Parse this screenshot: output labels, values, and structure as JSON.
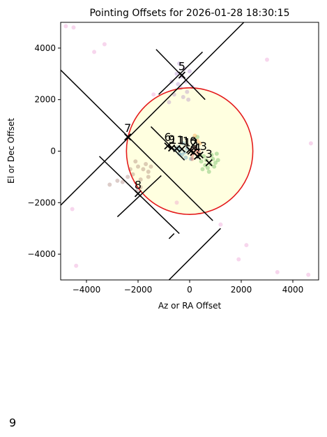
{
  "chart_data": {
    "type": "scatter",
    "title": "Pointing Offsets for 2026-01-28 18:30:15",
    "xlabel": "Az or RA Offset",
    "ylabel": "El or Dec Offset",
    "xlim": [
      -5000,
      5000
    ],
    "ylim": [
      -5000,
      5000
    ],
    "xticks": [
      -4000,
      -2000,
      0,
      2000,
      4000
    ],
    "yticks": [
      -4000,
      -2000,
      0,
      2000,
      4000
    ],
    "xtick_labels": [
      "−4000",
      "−2000",
      "0",
      "2000",
      "4000"
    ],
    "ytick_labels": [
      "−4000",
      "−2000",
      "0",
      "2000",
      "4000"
    ],
    "circle": {
      "center": [
        0,
        0
      ],
      "radius": 2450,
      "edge_color": "#e41a1c",
      "fill_color": "#ffffe0"
    },
    "markers": [
      {
        "label": "1",
        "x": -300,
        "y": 80
      },
      {
        "label": "2",
        "x": 150,
        "y": -50
      },
      {
        "label": "3",
        "x": 750,
        "y": -450
      },
      {
        "label": "4",
        "x": 300,
        "y": -200
      },
      {
        "label": "5",
        "x": -300,
        "y": 2950
      },
      {
        "label": "6",
        "x": -850,
        "y": 200
      },
      {
        "label": "7",
        "x": -2400,
        "y": 550
      },
      {
        "label": "8",
        "x": -2000,
        "y": -1650
      },
      {
        "label": "9",
        "x": -700,
        "y": 120
      },
      {
        "label": "10",
        "x": 0,
        "y": 50
      },
      {
        "label": "11",
        "x": -500,
        "y": 100
      },
      {
        "label": "12",
        "x": 50,
        "y": 0
      },
      {
        "label": "13",
        "x": 400,
        "y": -150
      }
    ],
    "lines": [
      {
        "x1": -1300,
        "y1": 3950,
        "x2": 600,
        "y2": 2000
      },
      {
        "x1": -1200,
        "y1": 2200,
        "x2": 500,
        "y2": 3850
      },
      {
        "x1": -5000,
        "y1": 3150,
        "x2": 900,
        "y2": -2700
      },
      {
        "x1": -5000,
        "y1": -2100,
        "x2": 2100,
        "y2": 5000
      },
      {
        "x1": -3500,
        "y1": -200,
        "x2": -400,
        "y2": -3200
      },
      {
        "x1": -2800,
        "y1": -2550,
        "x2": -1100,
        "y2": -950
      },
      {
        "x1": -1500,
        "y1": 950,
        "x2": -200,
        "y2": -350
      },
      {
        "x1": -800,
        "y1": -3400,
        "x2": -600,
        "y2": -3200
      },
      {
        "x1": -800,
        "y1": -5000,
        "x2": 1200,
        "y2": -3000
      }
    ],
    "scatter_clusters": [
      {
        "color": "#9467bd",
        "points": [
          [
            -300,
            2900
          ],
          [
            -150,
            2700
          ],
          [
            -450,
            2600
          ],
          [
            -200,
            3200
          ],
          [
            0,
            3100
          ],
          [
            -500,
            3000
          ],
          [
            -350,
            2450
          ],
          [
            -100,
            2300
          ],
          [
            -600,
            2200
          ],
          [
            100,
            2500
          ],
          [
            -250,
            2100
          ],
          [
            -700,
            2700
          ],
          [
            -50,
            2000
          ],
          [
            -400,
            3400
          ],
          [
            -800,
            1900
          ]
        ]
      },
      {
        "color": "#8c564b",
        "points": [
          [
            -2000,
            -600
          ],
          [
            -1800,
            -700
          ],
          [
            -2200,
            -900
          ],
          [
            -1700,
            -500
          ],
          [
            -2400,
            -1000
          ],
          [
            -1900,
            -1100
          ],
          [
            -2600,
            -1200
          ],
          [
            -3100,
            -1300
          ],
          [
            -1600,
            -800
          ],
          [
            -2100,
            -400
          ],
          [
            -1500,
            -600
          ],
          [
            -2800,
            -1150
          ],
          [
            -1900,
            -1400
          ],
          [
            -2300,
            -700
          ],
          [
            -2050,
            -1550
          ],
          [
            -1600,
            -1000
          ]
        ]
      },
      {
        "color": "#e377c2",
        "points": [
          [
            -4500,
            4800
          ],
          [
            -4800,
            4850
          ],
          [
            -3700,
            3850
          ],
          [
            -3300,
            4150
          ],
          [
            3000,
            3550
          ],
          [
            4700,
            300
          ],
          [
            -4550,
            -2250
          ],
          [
            -4400,
            -4450
          ],
          [
            2200,
            -3650
          ],
          [
            1200,
            -2850
          ],
          [
            1900,
            -4200
          ],
          [
            3400,
            -4700
          ],
          [
            4600,
            -4800
          ],
          [
            -1400,
            2200
          ],
          [
            -500,
            -2000
          ]
        ]
      },
      {
        "color": "#2ca02c",
        "points": [
          [
            650,
            -350
          ],
          [
            800,
            -500
          ],
          [
            550,
            -200
          ],
          [
            900,
            -300
          ],
          [
            700,
            -650
          ],
          [
            1000,
            -450
          ],
          [
            450,
            -400
          ],
          [
            850,
            -150
          ],
          [
            600,
            -550
          ],
          [
            1100,
            -350
          ],
          [
            750,
            -800
          ],
          [
            400,
            -150
          ],
          [
            950,
            -600
          ],
          [
            500,
            -700
          ],
          [
            300,
            550
          ],
          [
            1050,
            -100
          ]
        ]
      },
      {
        "color": "#1f77b4",
        "points": [
          [
            -350,
            50
          ],
          [
            -200,
            -50
          ],
          [
            -450,
            150
          ],
          [
            -100,
            100
          ],
          [
            -300,
            -150
          ],
          [
            -250,
            300
          ],
          [
            -550,
            50
          ],
          [
            -150,
            -250
          ],
          [
            -400,
            -100
          ],
          [
            50,
            -300
          ]
        ]
      },
      {
        "color": "#d62728",
        "points": [
          [
            150,
            -50
          ],
          [
            250,
            50
          ],
          [
            100,
            -150
          ],
          [
            300,
            -100
          ],
          [
            200,
            150
          ],
          [
            50,
            50
          ],
          [
            350,
            0
          ],
          [
            100,
            -300
          ]
        ]
      },
      {
        "color": "#ff7f0e",
        "points": [
          [
            300,
            400
          ],
          [
            400,
            300
          ],
          [
            200,
            600
          ]
        ]
      }
    ],
    "footer_text": "9"
  }
}
